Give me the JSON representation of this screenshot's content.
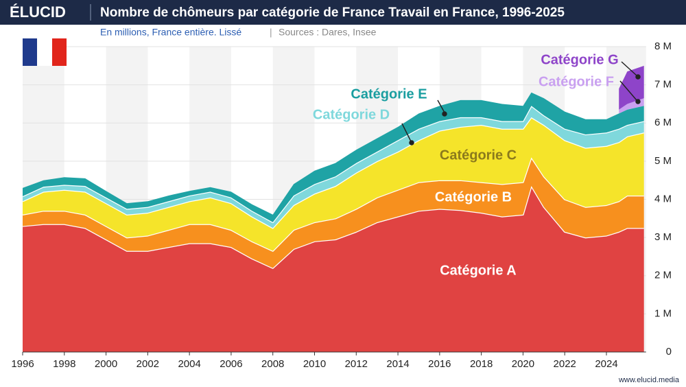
{
  "header": {
    "logo": "ÉLUCID",
    "title": "Nombre de chômeurs par catégorie de France Travail en France, 1996-2025",
    "subtitle": "En millions, France entière. Lissé",
    "separator": "|",
    "sources": "Sources : Dares, Insee"
  },
  "footer": "www.elucid.media",
  "chart_data": {
    "type": "stacked_area",
    "x": [
      1996,
      1997,
      1998,
      1999,
      2000,
      2001,
      2002,
      2003,
      2004,
      2005,
      2006,
      2007,
      2008,
      2009,
      2010,
      2011,
      2012,
      2013,
      2014,
      2015,
      2016,
      2017,
      2018,
      2019,
      2020,
      2020.4,
      2021,
      2022,
      2023,
      2024,
      2024.6,
      2025,
      2025.8
    ],
    "xlim": [
      1996,
      2025.9
    ],
    "xticks": [
      1996,
      1998,
      2000,
      2002,
      2004,
      2006,
      2008,
      2010,
      2012,
      2014,
      2016,
      2018,
      2020,
      2022,
      2024
    ],
    "ylim": [
      0,
      8
    ],
    "yticks": [
      {
        "value": 0,
        "label": "0"
      },
      {
        "value": 1,
        "label": "1 M"
      },
      {
        "value": 2,
        "label": "2 M"
      },
      {
        "value": 3,
        "label": "3 M"
      },
      {
        "value": 4,
        "label": "4 M"
      },
      {
        "value": 5,
        "label": "5 M"
      },
      {
        "value": 6,
        "label": "6 M"
      },
      {
        "value": 7,
        "label": "7 M"
      },
      {
        "value": 8,
        "label": "8 M"
      }
    ],
    "grid": true,
    "series": [
      {
        "name": "Catégorie A",
        "color": "#e04342",
        "values": [
          3.3,
          3.35,
          3.35,
          3.25,
          2.95,
          2.65,
          2.65,
          2.75,
          2.85,
          2.85,
          2.75,
          2.45,
          2.2,
          2.7,
          2.9,
          2.95,
          3.15,
          3.4,
          3.55,
          3.7,
          3.75,
          3.72,
          3.65,
          3.55,
          3.6,
          4.35,
          3.8,
          3.15,
          3.0,
          3.05,
          3.15,
          3.25,
          3.25
        ]
      },
      {
        "name": "Catégorie B",
        "color": "#f7901e",
        "values": [
          0.3,
          0.35,
          0.35,
          0.35,
          0.35,
          0.35,
          0.4,
          0.45,
          0.5,
          0.5,
          0.45,
          0.45,
          0.45,
          0.5,
          0.5,
          0.55,
          0.6,
          0.65,
          0.7,
          0.75,
          0.75,
          0.78,
          0.8,
          0.85,
          0.85,
          0.75,
          0.8,
          0.85,
          0.8,
          0.8,
          0.8,
          0.85,
          0.85
        ]
      },
      {
        "name": "Catégorie C",
        "color": "#f5e42a",
        "values": [
          0.35,
          0.5,
          0.55,
          0.6,
          0.6,
          0.6,
          0.6,
          0.6,
          0.6,
          0.7,
          0.7,
          0.65,
          0.6,
          0.65,
          0.75,
          0.85,
          0.95,
          0.95,
          1.0,
          1.1,
          1.3,
          1.4,
          1.5,
          1.45,
          1.4,
          1.05,
          1.35,
          1.55,
          1.55,
          1.55,
          1.55,
          1.55,
          1.65
        ]
      },
      {
        "name": "Catégorie D",
        "color": "#7fd8dc",
        "values": [
          0.13,
          0.13,
          0.13,
          0.15,
          0.15,
          0.15,
          0.15,
          0.15,
          0.15,
          0.15,
          0.15,
          0.15,
          0.15,
          0.25,
          0.25,
          0.25,
          0.25,
          0.25,
          0.3,
          0.3,
          0.25,
          0.25,
          0.2,
          0.2,
          0.2,
          0.3,
          0.25,
          0.3,
          0.35,
          0.35,
          0.35,
          0.3,
          0.3
        ]
      },
      {
        "name": "Catégorie E",
        "color": "#1fa3a5",
        "values": [
          0.22,
          0.17,
          0.2,
          0.2,
          0.17,
          0.15,
          0.15,
          0.15,
          0.12,
          0.12,
          0.15,
          0.17,
          0.2,
          0.3,
          0.35,
          0.35,
          0.35,
          0.35,
          0.35,
          0.4,
          0.4,
          0.45,
          0.45,
          0.45,
          0.4,
          0.35,
          0.45,
          0.45,
          0.4,
          0.35,
          0.4,
          0.4,
          0.4
        ]
      },
      {
        "name": "Catégorie F",
        "color": "#c9a0f0",
        "values": [
          null,
          null,
          null,
          null,
          null,
          null,
          null,
          null,
          null,
          null,
          null,
          null,
          null,
          null,
          null,
          null,
          null,
          null,
          null,
          null,
          null,
          null,
          null,
          null,
          null,
          null,
          null,
          null,
          null,
          null,
          0.1,
          0.15,
          0.2
        ]
      },
      {
        "name": "Catégorie G",
        "color": "#8e44c9",
        "values": [
          null,
          null,
          null,
          null,
          null,
          null,
          null,
          null,
          null,
          null,
          null,
          null,
          null,
          null,
          null,
          null,
          null,
          null,
          null,
          null,
          null,
          null,
          null,
          null,
          null,
          null,
          null,
          null,
          null,
          null,
          0.55,
          0.85,
          0.85
        ]
      }
    ]
  }
}
